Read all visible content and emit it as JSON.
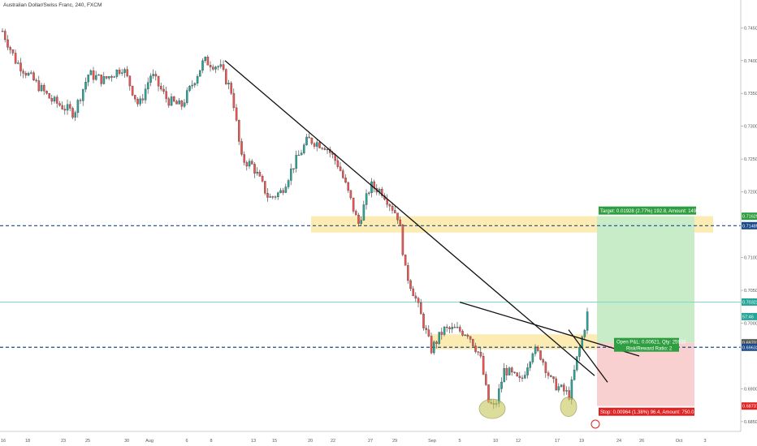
{
  "header": {
    "title": "Australian Dollar/Swiss Franc, 240, FXCM"
  },
  "colors": {
    "up": "#26a69a",
    "down": "#ef5350",
    "wick": "#333333",
    "zone": "#fbe7a6",
    "target": "#c8ecc8",
    "stop": "#f9d0d0",
    "targetLbl": "#2e9e40",
    "stopLbl": "#e02222",
    "dashed": "#1a4a8a",
    "hline": "#7fd7c8"
  },
  "chart_data": {
    "type": "candlestick",
    "ylim": [
      0.684,
      0.748
    ],
    "y_ticks": [
      "0.74500",
      "0.74000",
      "0.73500",
      "0.73000",
      "0.72500",
      "0.72000",
      "0.71000",
      "0.70500",
      "0.70000",
      "0.69000",
      "0.68500"
    ],
    "x_ticks": [
      "16",
      "18",
      "23",
      "25",
      "30",
      "Aug",
      "6",
      "8",
      "13",
      "15",
      "20",
      "22",
      "27",
      "29",
      "Sep",
      "5",
      "10",
      "12",
      "17",
      "19",
      "24",
      "26",
      "Oct",
      "3"
    ],
    "price_markers": [
      {
        "label": "0.71629",
        "price": 0.71629,
        "color": "#2e9e40"
      },
      {
        "label": "0.71485",
        "price": 0.71485,
        "color": "#1a4a8a"
      },
      {
        "label": "0.70322",
        "price": 0.70322,
        "color": "#26a69a"
      },
      {
        "label": "57:46",
        "price": 0.701,
        "color": "#26a69a"
      },
      {
        "label": "0.69701",
        "price": 0.69701,
        "color": "#555555"
      },
      {
        "label": "0.69632",
        "price": 0.69632,
        "color": "#1a4a8a"
      },
      {
        "label": "0.68737",
        "price": 0.68737,
        "color": "#e02222"
      }
    ],
    "horizontal_lines": [
      {
        "price": 0.71485,
        "style": "dashed"
      },
      {
        "price": 0.69632,
        "style": "dashed"
      },
      {
        "price": 0.70322,
        "style": "solid"
      }
    ],
    "zones": [
      {
        "from_date": "Aug 20",
        "to_date": "Oct 3",
        "low": 0.7138,
        "high": 0.7163
      },
      {
        "from_date": "Sep 1",
        "to_date": "Sep 19",
        "low": 0.696,
        "high": 0.6983
      }
    ],
    "position": {
      "entry": 0.69701,
      "target": 0.71629,
      "stop": 0.68737,
      "target_label": "Target: 0.01928 (2.77%) 192.8, Amount: 1499.99",
      "pnl_label": "Open P&L: 0.00621, Qty: 25933",
      "rr_label": "Risk/Reward Ratio: 2",
      "stop_label": "Stop: 0.00964 (1.38%) 96.4, Amount: 750.01"
    },
    "trendlines": [
      {
        "from": [
          "Aug 8",
          0.74
        ],
        "to": [
          "Sep 21",
          0.692
        ]
      },
      {
        "from": [
          "Sep 5",
          0.7032
        ],
        "to": [
          "Sep 22",
          0.695
        ]
      }
    ],
    "highlight_ellipses": [
      {
        "date": "Sep 8",
        "price": 0.6872
      },
      {
        "date": "Sep 17",
        "price": 0.6875
      }
    ]
  }
}
